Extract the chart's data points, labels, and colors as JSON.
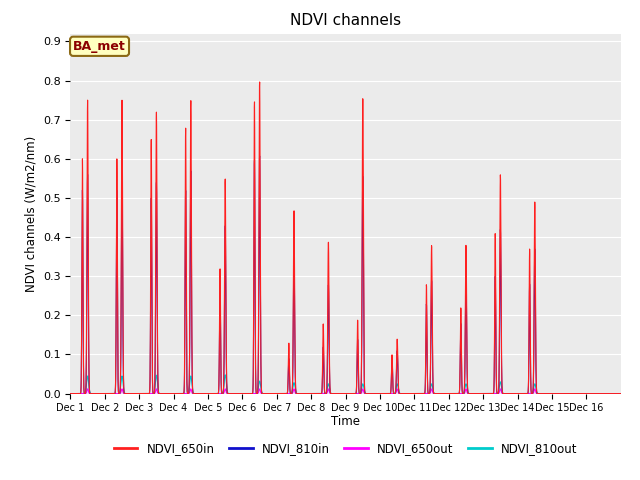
{
  "title": "NDVI channels",
  "xlabel": "Time",
  "ylabel": "NDVI channels (W/m2/nm)",
  "ylim": [
    0.0,
    0.92
  ],
  "yticks": [
    0.0,
    0.1,
    0.2,
    0.3,
    0.4,
    0.5,
    0.6,
    0.7,
    0.8,
    0.9
  ],
  "bg_color": "#e8e8e8",
  "plot_bg_color": "#ebebeb",
  "annotation_text": "BA_met",
  "annotation_fg": "#8B0000",
  "annotation_bg": "#ffffc0",
  "annotation_border": "#8B6914",
  "colors": {
    "NDVI_650in": "#ff2020",
    "NDVI_810in": "#1010cc",
    "NDVI_650out": "#ff00ff",
    "NDVI_810out": "#00cccc"
  },
  "num_days": 16,
  "points_per_day": 200,
  "peak_positions": [
    0.5,
    0.5,
    0.5,
    0.5,
    0.5,
    0.5,
    0.5,
    0.5,
    0.5,
    0.5,
    0.5,
    0.5,
    0.5,
    0.5,
    0.5,
    0.5
  ],
  "secondary_positions": [
    0.35,
    0.35,
    0.35,
    0.35,
    0.35,
    0.35,
    0.35,
    0.35,
    0.35,
    0.35,
    0.35,
    0.35,
    0.35,
    0.35,
    0.35,
    0.35
  ],
  "peak_sigma": 0.018,
  "secondary_sigma": 0.015,
  "day_peak_heights_650in": [
    0.75,
    0.75,
    0.72,
    0.75,
    0.55,
    0.8,
    0.47,
    0.39,
    0.76,
    0.14,
    0.38,
    0.38,
    0.56,
    0.49,
    0.0,
    0.0
  ],
  "day_secondary_heights_650in": [
    0.6,
    0.6,
    0.65,
    0.68,
    0.32,
    0.75,
    0.13,
    0.18,
    0.19,
    0.1,
    0.28,
    0.22,
    0.41,
    0.37,
    0.0,
    0.0
  ],
  "day_peak_heights_810in": [
    0.56,
    0.56,
    0.54,
    0.57,
    0.43,
    0.61,
    0.36,
    0.28,
    0.56,
    0.11,
    0.29,
    0.29,
    0.42,
    0.37,
    0.0,
    0.0
  ],
  "day_secondary_heights_810in": [
    0.52,
    0.52,
    0.5,
    0.52,
    0.26,
    0.6,
    0.09,
    0.12,
    0.14,
    0.09,
    0.23,
    0.18,
    0.3,
    0.28,
    0.0,
    0.0
  ],
  "day_peak_heights_650out": [
    0.012,
    0.012,
    0.012,
    0.012,
    0.012,
    0.012,
    0.012,
    0.012,
    0.012,
    0.012,
    0.012,
    0.012,
    0.012,
    0.012,
    0.0,
    0.0
  ],
  "day_secondary_heights_650out": [
    0.0,
    0.0,
    0.0,
    0.0,
    0.0,
    0.0,
    0.0,
    0.0,
    0.0,
    0.0,
    0.0,
    0.0,
    0.0,
    0.0,
    0.0,
    0.0
  ],
  "day_peak_heights_810out": [
    0.045,
    0.045,
    0.047,
    0.045,
    0.048,
    0.032,
    0.028,
    0.025,
    0.025,
    0.025,
    0.025,
    0.025,
    0.03,
    0.025,
    0.0,
    0.0
  ],
  "day_secondary_heights_810out": [
    0.0,
    0.0,
    0.0,
    0.0,
    0.0,
    0.0,
    0.0,
    0.0,
    0.0,
    0.0,
    0.0,
    0.0,
    0.0,
    0.0,
    0.0,
    0.0
  ],
  "xtick_labels": [
    "Dec 1",
    "Dec 2",
    "Dec 3",
    "Dec 4",
    "Dec 5",
    "Dec 6",
    "Dec 7",
    "Dec 8",
    "Dec 9",
    "Dec 10",
    "Dec 11",
    "Dec 12",
    "Dec 13",
    "Dec 14",
    "Dec 15",
    "Dec 16"
  ],
  "xtick_positions": [
    0,
    1,
    2,
    3,
    4,
    5,
    6,
    7,
    8,
    9,
    10,
    11,
    12,
    13,
    14,
    15
  ]
}
